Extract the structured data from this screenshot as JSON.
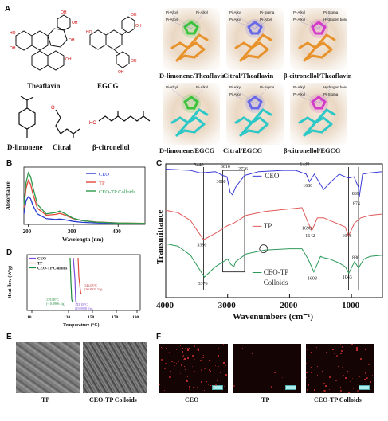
{
  "panels": {
    "A": "A",
    "B": "B",
    "C": "C",
    "D": "D",
    "E": "E",
    "F": "F"
  },
  "panel_a": {
    "structures": [
      "Theaflavin",
      "EGCG",
      "D-limonene",
      "Citral",
      "β-citronellol"
    ],
    "docking": [
      {
        "label": "D-limonene/Theaflavin",
        "color": "#3cc43c",
        "tags": [
          "Pi-Alkyl",
          "Pi-Alkyl",
          "Pi-Alkyl"
        ]
      },
      {
        "label": "Citral/Theaflavin",
        "color": "#6a6ae8",
        "tags": [
          "Pi-Alkyl",
          "Pi-Sigma",
          "Pi-Alkyl",
          "Pi-Alkyl"
        ]
      },
      {
        "label": "β-citronellol/Theaflavin",
        "color": "#d23cc8",
        "tags": [
          "Pi-Alkyl",
          "Pi-Sigma",
          "Pi-Alkyl",
          "Hydrogen bond"
        ]
      },
      {
        "label": "D-limonene/EGCG",
        "color": "#3cc43c",
        "tags": [
          "Pi-Alkyl",
          "Pi-Alkyl"
        ]
      },
      {
        "label": "Citral/EGCG",
        "color": "#6a6ae8",
        "tags": [
          "Pi-Alkyl",
          "Pi-Sigma",
          "Pi-Alkyl"
        ]
      },
      {
        "label": "β-citronellol/EGCG",
        "color": "#d23cc8",
        "tags": [
          "Pi-Alkyl",
          "Hydrogen bond",
          "Pi-Alkyl",
          "Pi-Sigma"
        ]
      }
    ]
  },
  "chart_data": [
    {
      "panel": "B",
      "type": "line",
      "xlabel": "Wavelength (nm)",
      "ylabel": "Absorbance",
      "xticks": [
        200,
        300,
        400
      ],
      "xlim": [
        190,
        460
      ],
      "ylim": [
        0,
        3.0
      ],
      "legend": "top-right",
      "series": [
        {
          "name": "CEO",
          "color": "#2a3ccf",
          "x": [
            190,
            195,
            200,
            205,
            210,
            220,
            240,
            260,
            270,
            280,
            300,
            320,
            350,
            400,
            460
          ],
          "y": [
            0.55,
            1.25,
            1.45,
            1.35,
            1.0,
            0.55,
            0.3,
            0.26,
            0.28,
            0.25,
            0.16,
            0.11,
            0.08,
            0.05,
            0.04
          ]
        },
        {
          "name": "TP",
          "color": "#e0483a",
          "x": [
            190,
            195,
            200,
            205,
            210,
            220,
            240,
            260,
            270,
            280,
            300,
            320,
            350,
            400,
            460
          ],
          "y": [
            0.9,
            1.9,
            2.3,
            2.1,
            1.6,
            0.85,
            0.48,
            0.52,
            0.58,
            0.5,
            0.3,
            0.2,
            0.13,
            0.08,
            0.06
          ]
        },
        {
          "name": "CEO-TP Colloids",
          "color": "#2c9a4a",
          "x": [
            190,
            195,
            200,
            205,
            210,
            220,
            240,
            260,
            270,
            280,
            300,
            320,
            350,
            400,
            460
          ],
          "y": [
            1.0,
            2.2,
            2.7,
            2.5,
            1.95,
            1.05,
            0.55,
            0.62,
            0.7,
            0.58,
            0.32,
            0.2,
            0.12,
            0.07,
            0.05
          ]
        }
      ]
    },
    {
      "panel": "C",
      "type": "line",
      "xlabel": "Wavenumbers (cm⁻¹)",
      "ylabel": "Transmittance",
      "xticks": [
        4000,
        3000,
        2000,
        1000
      ],
      "xlim": [
        4000,
        500
      ],
      "series": [
        {
          "name": "CEO",
          "color": "#3a3ad6",
          "x": [
            4000,
            3600,
            3440,
            3200,
            3080,
            3010,
            2960,
            2920,
            2870,
            2726,
            2500,
            2100,
            1900,
            1730,
            1680,
            1600,
            1450,
            1375,
            1200,
            1048,
            960,
            889,
            874,
            820,
            700,
            500
          ],
          "y": [
            100,
            99,
            97,
            98,
            95,
            94,
            82,
            80,
            86,
            95,
            98,
            99,
            99,
            96,
            90,
            96,
            84,
            88,
            96,
            93,
            94,
            86,
            78,
            96,
            97,
            98
          ]
        },
        {
          "name": "TP",
          "color": "#e05a5a",
          "x": [
            4000,
            3800,
            3600,
            3390,
            3200,
            3000,
            2900,
            2700,
            2400,
            2000,
            1800,
            1698,
            1642,
            1550,
            1450,
            1350,
            1200,
            1100,
            1048,
            950,
            850,
            700,
            500
          ],
          "y": [
            68,
            66,
            60,
            45,
            50,
            56,
            58,
            64,
            67,
            69,
            70,
            58,
            52,
            62,
            62,
            60,
            57,
            55,
            48,
            58,
            62,
            64,
            65
          ]
        },
        {
          "name": "CEO-TP Colloids",
          "color": "#2e9a5a",
          "x": [
            4000,
            3800,
            3600,
            3376,
            3200,
            3000,
            2950,
            2900,
            2870,
            2700,
            2400,
            2000,
            1800,
            1700,
            1608,
            1500,
            1450,
            1350,
            1200,
            1100,
            1043,
            950,
            886,
            800,
            700,
            500
          ],
          "y": [
            42,
            40,
            33,
            16,
            24,
            30,
            26,
            24,
            28,
            34,
            37,
            38,
            38,
            30,
            20,
            32,
            31,
            30,
            27,
            24,
            19,
            28,
            23,
            30,
            32,
            33
          ]
        }
      ],
      "annotations": {
        "ceo_peaks": [
          "3440",
          "3080",
          "3010",
          "2726",
          "1730",
          "1680",
          "889",
          "874"
        ],
        "tp_peaks": [
          "3390",
          "1698",
          "1642",
          "1048"
        ],
        "colloid_peaks": [
          "3376",
          "1608",
          "1043",
          "886"
        ]
      }
    },
    {
      "panel": "D",
      "type": "line",
      "xlabel": "Temperature (°C)",
      "ylabel": "Heat flow (W/g)",
      "xticks": [
        10,
        130,
        150,
        170,
        190
      ],
      "legend": "top-left",
      "series": [
        {
          "name": "CEO",
          "color": "#7c4ad8"
        },
        {
          "name": "TP",
          "color": "#e0483a"
        },
        {
          "name": "CEO-TP Colloids",
          "color": "#1d8a3a"
        }
      ],
      "annotations": [
        "146.03°C",
        "(30.8921 J/g)",
        "139.88°C",
        "(-10.3906 J/g)",
        "143.18°C",
        "(19.9928 J/g)"
      ]
    }
  ],
  "panel_e": {
    "images": [
      "TP",
      "CEO-TP Colloids"
    ]
  },
  "panel_f": {
    "images": [
      "CEO",
      "TP",
      "CEO-TP Colloids"
    ]
  }
}
